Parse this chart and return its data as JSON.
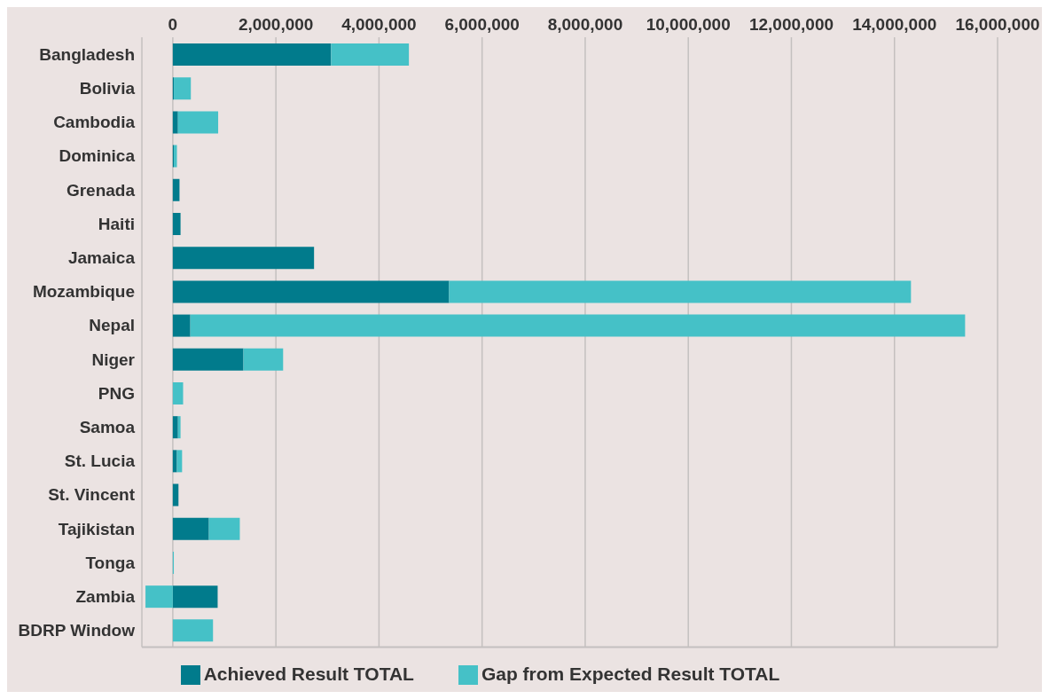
{
  "chart_data": {
    "type": "bar",
    "orientation": "horizontal",
    "stacked": true,
    "categories": [
      "Bangladesh",
      "Bolivia",
      "Cambodia",
      "Dominica",
      "Grenada",
      "Haiti",
      "Jamaica",
      "Mozambique",
      "Nepal",
      "Niger",
      "PNG",
      "Samoa",
      "St. Lucia",
      "St. Vincent",
      "Tajikistan",
      "Tonga",
      "Zambia",
      "BDRP Window"
    ],
    "series": [
      {
        "name": "Achieved Result TOTAL",
        "color": "#017b8c",
        "values": [
          3070000,
          20000,
          100000,
          20000,
          130000,
          150000,
          2740000,
          5360000,
          340000,
          1370000,
          0,
          100000,
          80000,
          110000,
          700000,
          0,
          870000,
          0
        ]
      },
      {
        "name": "Gap from Expected Result TOTAL",
        "color": "#45c1c7",
        "values": [
          1510000,
          330000,
          780000,
          60000,
          0,
          0,
          0,
          8960000,
          15030000,
          770000,
          200000,
          50000,
          100000,
          0,
          600000,
          20000,
          -530000,
          780000
        ]
      }
    ],
    "xlim": [
      -600000,
      16000000
    ],
    "xticks": [
      {
        "value": 0,
        "label": "0"
      },
      {
        "value": 2000000,
        "label": "2,000,000"
      },
      {
        "value": 4000000,
        "label": "4,000,000"
      },
      {
        "value": 6000000,
        "label": "6,000,000"
      },
      {
        "value": 8000000,
        "label": "8,000,000"
      },
      {
        "value": 10000000,
        "label": "10,000,000"
      },
      {
        "value": 12000000,
        "label": "12,000,000"
      },
      {
        "value": 14000000,
        "label": "14,000,000"
      },
      {
        "value": 16000000,
        "label": "16,000,000"
      }
    ],
    "grid": "x",
    "legend": "bottom"
  }
}
